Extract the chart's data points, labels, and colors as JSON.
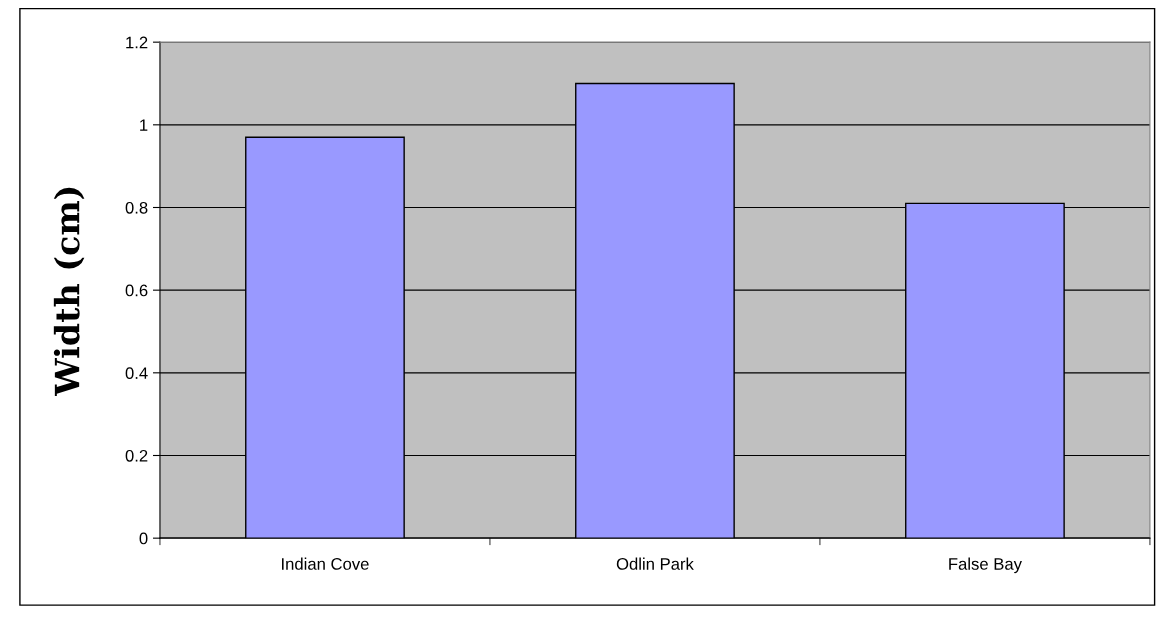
{
  "chart_data": {
    "type": "bar",
    "ylabel": "Width (cm)",
    "categories": [
      "Indian Cove",
      "Odlin Park",
      "False Bay"
    ],
    "values": [
      0.97,
      1.1,
      0.81
    ],
    "color": "#9999ff",
    "ylim": [
      0,
      1.2
    ],
    "yticks": [
      0,
      0.2,
      0.4,
      0.6,
      0.8,
      1,
      1.2
    ],
    "grid": "y",
    "legend": false
  }
}
